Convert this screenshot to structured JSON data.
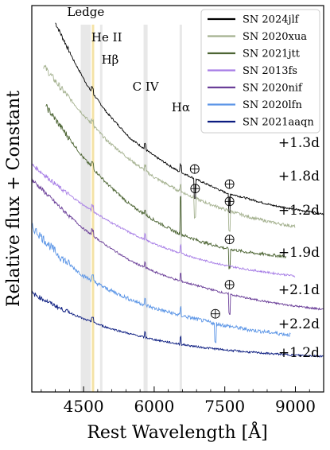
{
  "chart_data": {
    "type": "line",
    "xlabel": "Rest Wavelength [Å]",
    "ylabel": "Relative flux + Constant",
    "xlim": [
      3400,
      9600
    ],
    "x_ticks": [
      4500,
      6000,
      7500,
      9000
    ],
    "x_tick_labels": [
      "4500",
      "6000",
      "7500",
      "9000"
    ],
    "y_ticks_shown": false,
    "grid": false,
    "legend_position": "top-right",
    "line_markers": [
      {
        "label": "Ledge",
        "x_range": [
          4440,
          4650
        ],
        "color": "#e8e8e8"
      },
      {
        "label": "He II",
        "x_range": [
          4675,
          4700
        ],
        "color": "#f4e3a6"
      },
      {
        "label": "Hβ",
        "x_range": [
          4850,
          4872
        ],
        "color": "#e8e8e8"
      },
      {
        "label": "C IV",
        "x_range": [
          5775,
          5860
        ],
        "color": "#e8e8e8"
      },
      {
        "label": "Hα",
        "x_range": [
          6540,
          6590
        ],
        "color": "#e8e8e8"
      }
    ],
    "telluric_symbol": "⊕",
    "series": [
      {
        "name": "SN 2024jlf",
        "color": "#000000",
        "epoch": "+1.3d",
        "x_range": [
          3900,
          9600
        ],
        "baseline": 0.0,
        "points": [
          [
            3900,
            10.2
          ],
          [
            4300,
            9.3
          ],
          [
            4600,
            8.7
          ],
          [
            5000,
            8.1
          ],
          [
            5500,
            7.5
          ],
          [
            6000,
            7.1
          ],
          [
            6500,
            6.75
          ],
          [
            7000,
            6.5
          ],
          [
            7500,
            6.25
          ],
          [
            8000,
            6.1
          ],
          [
            8500,
            5.95
          ],
          [
            9000,
            5.85
          ],
          [
            9600,
            5.75
          ]
        ],
        "tellurics": [
          6860,
          7600
        ]
      },
      {
        "name": "SN 2020xua",
        "color": "#a4b18f",
        "epoch": "+1.8d",
        "x_range": [
          3650,
          9000
        ],
        "points": [
          [
            3650,
            9.2
          ],
          [
            4000,
            8.7
          ],
          [
            4500,
            8.05
          ],
          [
            5000,
            7.45
          ],
          [
            5500,
            7.0
          ],
          [
            6000,
            6.6
          ],
          [
            6500,
            6.3
          ],
          [
            7000,
            6.05
          ],
          [
            7500,
            5.85
          ],
          [
            8000,
            5.68
          ],
          [
            8500,
            5.55
          ],
          [
            9000,
            5.45
          ]
        ],
        "tellurics": [
          6870,
          7600
        ]
      },
      {
        "name": "SN 2021jtt",
        "color": "#4d6534",
        "epoch": "+1.2d",
        "x_range": [
          3700,
          8800
        ],
        "points": [
          [
            3700,
            8.25
          ],
          [
            4000,
            7.8
          ],
          [
            4500,
            7.05
          ],
          [
            5000,
            6.45
          ],
          [
            5500,
            5.95
          ],
          [
            6000,
            5.6
          ],
          [
            6500,
            5.3
          ],
          [
            7000,
            5.1
          ],
          [
            7500,
            4.95
          ],
          [
            8000,
            4.85
          ],
          [
            8800,
            4.75
          ]
        ],
        "tellurics": [
          7600
        ]
      },
      {
        "name": "SN 2013fs",
        "color": "#a77ee6",
        "epoch": "+1.9d",
        "x_range": [
          3400,
          9000
        ],
        "points": [
          [
            3400,
            6.9
          ],
          [
            4000,
            6.35
          ],
          [
            4500,
            5.95
          ],
          [
            5000,
            5.6
          ],
          [
            5500,
            5.3
          ],
          [
            6000,
            5.05
          ],
          [
            6500,
            4.85
          ],
          [
            7000,
            4.68
          ],
          [
            7500,
            4.55
          ],
          [
            8000,
            4.45
          ],
          [
            8500,
            4.37
          ],
          [
            9000,
            4.3
          ]
        ],
        "tellurics": []
      },
      {
        "name": "SN 2020nif",
        "color": "#6a3e98",
        "epoch": "+2.1d",
        "x_range": [
          3400,
          9600
        ],
        "points": [
          [
            3400,
            6.55
          ],
          [
            4000,
            5.9
          ],
          [
            4500,
            5.4
          ],
          [
            5000,
            5.0
          ],
          [
            5500,
            4.65
          ],
          [
            6000,
            4.4
          ],
          [
            6500,
            4.2
          ],
          [
            7000,
            4.05
          ],
          [
            7500,
            3.9
          ],
          [
            8000,
            3.78
          ],
          [
            8500,
            3.68
          ],
          [
            9000,
            3.6
          ],
          [
            9600,
            3.52
          ]
        ],
        "tellurics": [
          7600
        ]
      },
      {
        "name": "SN 2020lfn",
        "color": "#5b95e6",
        "epoch": "+2.2d",
        "x_range": [
          3400,
          8900
        ],
        "points": [
          [
            3400,
            5.45
          ],
          [
            4000,
            4.75
          ],
          [
            4500,
            4.3
          ],
          [
            5000,
            4.0
          ],
          [
            5500,
            3.75
          ],
          [
            6000,
            3.55
          ],
          [
            6500,
            3.4
          ],
          [
            7000,
            3.27
          ],
          [
            7500,
            3.15
          ],
          [
            8000,
            3.05
          ],
          [
            8500,
            2.98
          ],
          [
            8900,
            2.93
          ]
        ],
        "tellurics": [
          7300
        ]
      },
      {
        "name": "SN 2021aaqn",
        "color": "#0b1c80",
        "epoch": "+1.2d",
        "x_range": [
          3400,
          9600
        ],
        "points": [
          [
            3400,
            3.9
          ],
          [
            4000,
            3.55
          ],
          [
            4500,
            3.3
          ],
          [
            5000,
            3.1
          ],
          [
            5500,
            2.95
          ],
          [
            6000,
            2.82
          ],
          [
            6500,
            2.72
          ],
          [
            7000,
            2.64
          ],
          [
            7500,
            2.58
          ],
          [
            8000,
            2.53
          ],
          [
            8500,
            2.49
          ],
          [
            9000,
            2.46
          ],
          [
            9600,
            2.43
          ]
        ],
        "tellurics": []
      }
    ]
  }
}
